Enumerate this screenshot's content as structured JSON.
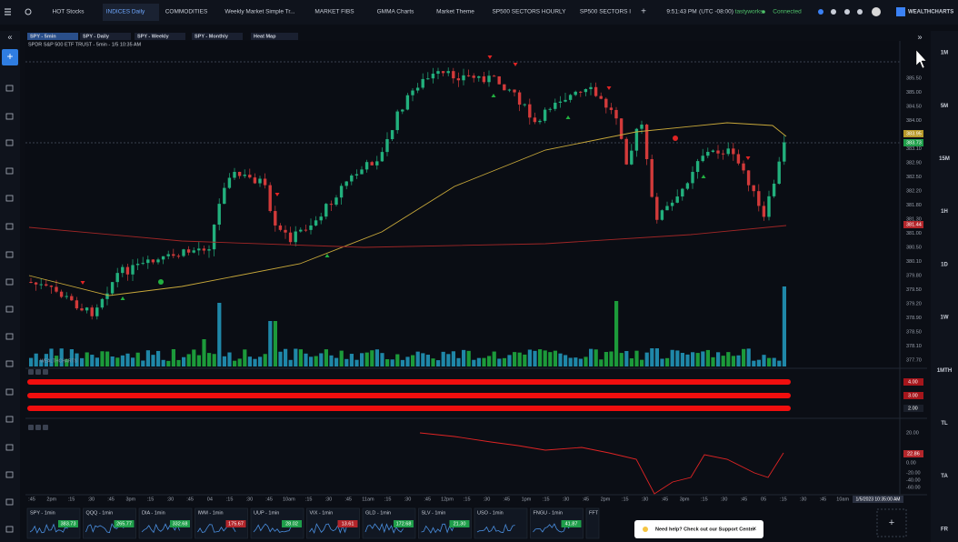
{
  "top_tabs": [
    "HOT Stocks",
    "INDICES Daily",
    "COMMODITIES",
    "Weekly Market Simple Tr...",
    "MARKET FIBS",
    "GMMA Charts",
    "Market Theme",
    "SP500 SECTORS HOURLY",
    "SP500 SECTORS I"
  ],
  "status": {
    "time": "9:51:43 PM",
    "timezone": "(UTC -08:00)",
    "broker": "tastyworks",
    "connection": "Connected",
    "logo": "WEALTHCHARTS"
  },
  "chart_tabs": [
    "SPY - 5min",
    "SPY - Daily",
    "SPY - Weekly",
    "SPY - Monthly",
    "Heat Map"
  ],
  "chart_title": "SPDR S&P 500 ETF TRUST - 5min - 1/5 10:35 AM",
  "watermark": "WEALTHCHARTS",
  "price_axis": [
    "385.50",
    "385.00",
    "384.50",
    "384.00",
    "383.40",
    "383.10",
    "382.90",
    "382.50",
    "382.20",
    "381.80",
    "381.30",
    "381.00",
    "380.50",
    "380.10",
    "379.80",
    "379.50",
    "379.20",
    "378.90",
    "378.50",
    "378.10",
    "377.70"
  ],
  "price_markers": [
    {
      "label": "383.95",
      "color": "#b89a2a"
    },
    {
      "label": "383.73",
      "color": "#1f9e4a"
    },
    {
      "label": "381.44",
      "color": "#b3262b"
    }
  ],
  "indicator_labels": [
    "4.00",
    "3.00",
    "2.00"
  ],
  "oscillator_axis": [
    "20.00",
    "0.00",
    "-20.00",
    "-40.00",
    "-60.00"
  ],
  "oscillator_marker": "22.86",
  "time_axis": [
    ":45",
    "2pm",
    ":15",
    ":30",
    ":45",
    "3pm",
    ":15",
    ":30",
    ":45",
    "04",
    ":15",
    ":30",
    ":45",
    "10am",
    ":15",
    ":30",
    ":45",
    "11am",
    ":15",
    ":30",
    ":45",
    "12pm",
    ":15",
    ":30",
    ":45",
    "1pm",
    ":15",
    ":30",
    ":45",
    "2pm",
    ":15",
    ":30",
    ":45",
    "3pm",
    ":15",
    ":30",
    ":45",
    "05",
    ":15",
    ":30",
    ":45",
    "10am"
  ],
  "time_cursor": "1/5/2023 10:35:00 AM",
  "timeframes": [
    "1M",
    "5M",
    "15M",
    "1H",
    "1D",
    "1W",
    "1MTH",
    "TL",
    "TA",
    "FR"
  ],
  "watchlist": [
    {
      "name": "SPY - 1min",
      "price": "383.73",
      "up": true
    },
    {
      "name": "QQQ - 1min",
      "price": "265.77",
      "up": true
    },
    {
      "name": "DIA - 1min",
      "price": "332.68",
      "up": true
    },
    {
      "name": "IWM - 1min",
      "price": "175.67",
      "up": false
    },
    {
      "name": "UUP - 1min",
      "price": "28.02",
      "up": true
    },
    {
      "name": "VIX - 1min",
      "price": "13.61",
      "up": false
    },
    {
      "name": "GLD - 1min",
      "price": "172.68",
      "up": true
    },
    {
      "name": "SLV - 1min",
      "price": "21.30",
      "up": true
    },
    {
      "name": "USO - 1min",
      "price": "",
      "up": true
    },
    {
      "name": "FNGU - 1min",
      "price": "41.87",
      "up": true
    },
    {
      "name": "FFT",
      "price": "",
      "up": true
    }
  ],
  "support": "Need help? Check out our Support Center"
}
